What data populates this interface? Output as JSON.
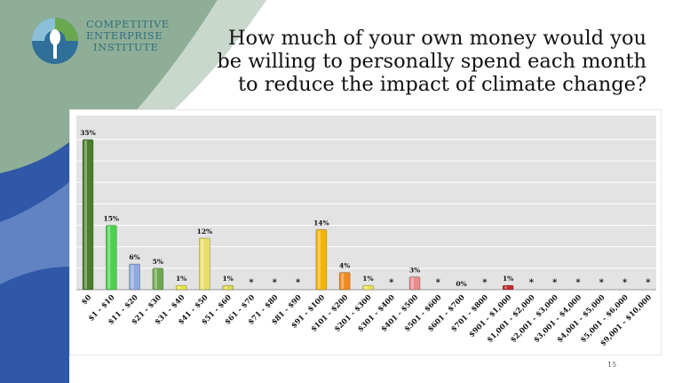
{
  "org": {
    "line1": "COMPETITIVE",
    "line2": "ENTERPRISE",
    "line3": "INSTITUTE"
  },
  "title_lines": [
    "How much of your own money would you",
    "be willing to personally spend each month",
    "to reduce the impact of climate change?"
  ],
  "page_number": "15",
  "colors": {
    "brand_teal": "#2f6f7c",
    "bg_green": "#8fae97",
    "bg_blue": "#2f58a8",
    "plot_bg": "#e3e3e3"
  },
  "chart_data": {
    "type": "bar",
    "title": "How much of your own money would you be willing to personally spend each month to reduce the impact of climate change?",
    "xlabel": "",
    "ylabel": "",
    "ylim": [
      0,
      35
    ],
    "grid": true,
    "legend": "none",
    "categories": [
      "$0",
      "$1 - $10",
      "$11 - $20",
      "$21 - $30",
      "$31 - $40",
      "$41 - $50",
      "$51 - $60",
      "$61 - $70",
      "$71 - $80",
      "$81 - $90",
      "$91 - $100",
      "$101 - $200",
      "$201 - $300",
      "$301 - $400",
      "$401 - $500",
      "$501 - $600",
      "$601 - $700",
      "$701 - $800",
      "$901 - $1,000",
      "$1,001 - $2,000",
      "$2,001 - $3,000",
      "$3,001 - $4,000",
      "$4,001 - $5,000",
      "$5,001 - $6,000",
      "$9,001 - $10,000"
    ],
    "values": [
      35,
      15,
      6,
      5,
      1,
      12,
      1,
      0,
      0,
      0,
      14,
      4,
      1,
      0,
      3,
      0,
      0,
      0,
      1,
      0,
      0,
      0,
      0,
      0,
      0
    ],
    "data_labels": [
      "35%",
      "15%",
      "6%",
      "5%",
      "1%",
      "12%",
      "1%",
      "*",
      "*",
      "*",
      "14%",
      "4%",
      "1%",
      "*",
      "3%",
      "*",
      "0%",
      "*",
      "1%",
      "*",
      "*",
      "*",
      "*",
      "*",
      "*"
    ],
    "bar_colors": [
      "#4a7d2e",
      "#4cd14c",
      "#8ea8e0",
      "#6fa84f",
      "#e6e14a",
      "#e8df6a",
      "#e0d84a",
      "#444444",
      "#444444",
      "#444444",
      "#f2b500",
      "#f08a1e",
      "#e8e35a",
      "#444444",
      "#e88a8a",
      "#444444",
      "#444444",
      "#444444",
      "#c0282c",
      "#444444",
      "#444444",
      "#444444",
      "#444444",
      "#444444",
      "#444444"
    ]
  }
}
